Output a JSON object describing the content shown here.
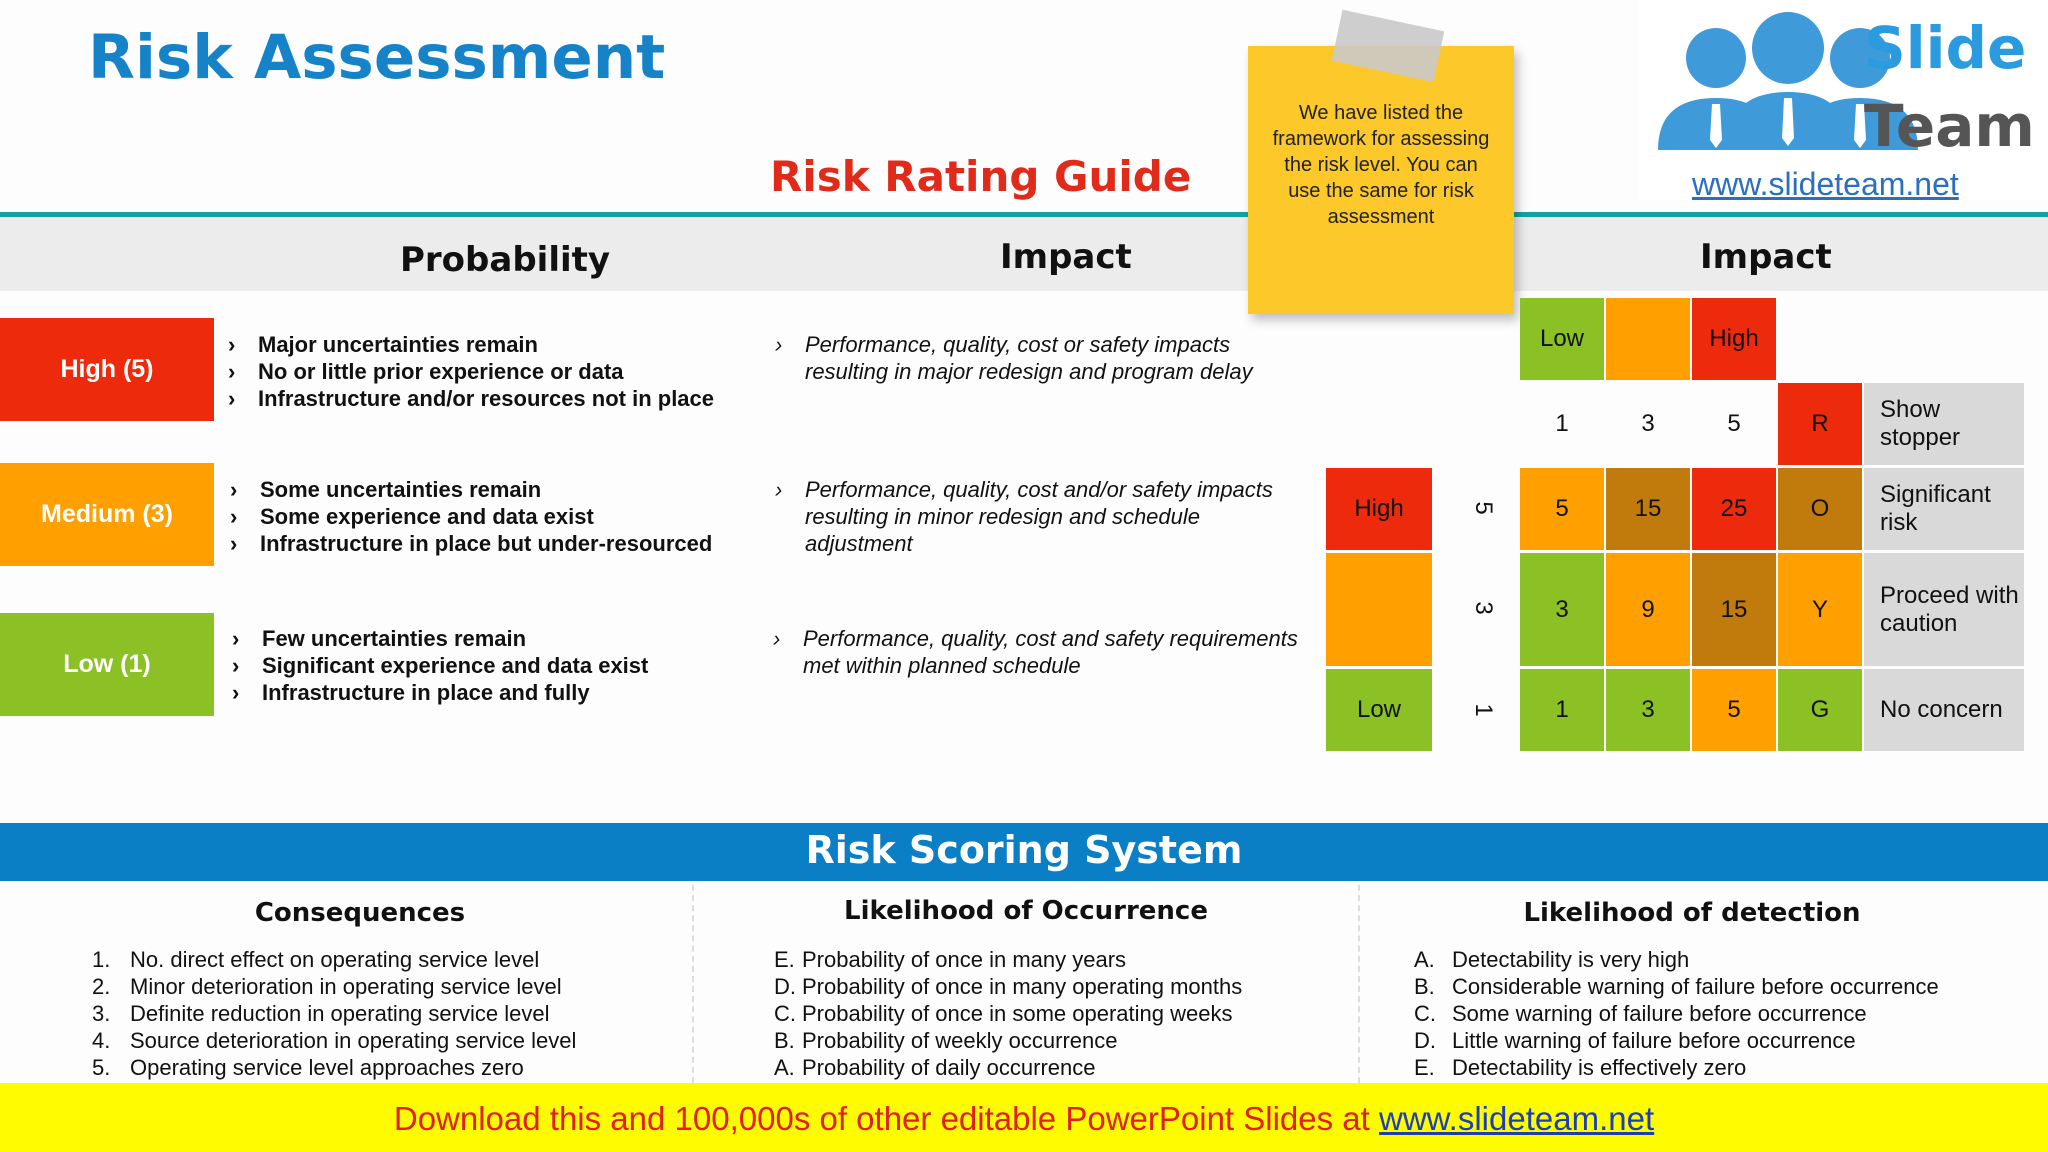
{
  "title": "Risk Assessment",
  "guide_title": "Risk Rating Guide",
  "headers": {
    "probability": "Probability",
    "impact": "Impact",
    "matrix_impact": "Impact"
  },
  "ratings": [
    {
      "label": "High (5)",
      "color": "#ee2a0c",
      "probability": [
        "Major uncertainties remain",
        "No or little prior experience or data",
        "Infrastructure and/or resources not in place"
      ],
      "impact": "Performance, quality, cost or safety impacts resulting in major redesign and program delay"
    },
    {
      "label": "Medium (3)",
      "color": "#ffa000",
      "probability": [
        "Some uncertainties remain",
        "Some experience and data exist",
        "Infrastructure in place but under-resourced"
      ],
      "impact": "Performance, quality, cost and/or safety impacts resulting in minor redesign and schedule adjustment"
    },
    {
      "label": "Low (1)",
      "color": "#8bc125",
      "probability": [
        "Few uncertainties remain",
        "Significant experience and data exist",
        "Infrastructure in place and fully"
      ],
      "impact": "Performance, quality, cost and safety requirements met within planned schedule"
    }
  ],
  "note": "We have listed the framework for assessing the risk level. You can use the same for risk assessment",
  "matrix": {
    "impact_scale": [
      "Low",
      "",
      "High"
    ],
    "impact_numbers": [
      "1",
      "3",
      "5"
    ],
    "probability_labels": [
      "High",
      "",
      "Low"
    ],
    "probability_numbers": [
      "5",
      "3",
      "1"
    ],
    "header_code": "R",
    "header_label": "Show stopper",
    "rows": [
      {
        "values": [
          "5",
          "15",
          "25"
        ],
        "code": "O",
        "label": "Significant risk"
      },
      {
        "values": [
          "3",
          "9",
          "15"
        ],
        "code": "Y",
        "label": "Proceed with caution"
      },
      {
        "values": [
          "1",
          "3",
          "5"
        ],
        "code": "G",
        "label": "No concern"
      }
    ],
    "colors": {
      "red": "#ee2a0c",
      "orange": "#ffa000",
      "brown": "#c17a0c",
      "green": "#8bc125",
      "gray": "#d9d9d9"
    }
  },
  "logo": {
    "name_top": "Slide",
    "name_bottom": "Team",
    "url": "www.slideteam.net"
  },
  "scoring": {
    "title": "Risk Scoring System",
    "consequences": {
      "title": "Consequences",
      "items": [
        {
          "m": "1.",
          "t": "No. direct effect on operating service level"
        },
        {
          "m": "2.",
          "t": "Minor deterioration in operating service level"
        },
        {
          "m": "3.",
          "t": "Definite reduction in operating service level"
        },
        {
          "m": "4.",
          "t": "Source deterioration in operating service level"
        },
        {
          "m": "5.",
          "t": "Operating service level approaches zero"
        }
      ]
    },
    "likelihood": {
      "title": "Likelihood of Occurrence",
      "items": [
        {
          "m": "E.",
          "t": "Probability of once in many years"
        },
        {
          "m": "D.",
          "t": "Probability of once in many operating months"
        },
        {
          "m": "C.",
          "t": "Probability of once in some operating weeks"
        },
        {
          "m": "B.",
          "t": "Probability of weekly occurrence"
        },
        {
          "m": "A.",
          "t": "Probability of daily occurrence"
        }
      ]
    },
    "detection": {
      "title": "Likelihood of detection",
      "items": [
        {
          "m": "A.",
          "t": "Detectability is very high"
        },
        {
          "m": "B.",
          "t": "Considerable warning of failure before occurrence"
        },
        {
          "m": "C.",
          "t": "Some warning of failure before occurrence"
        },
        {
          "m": "D.",
          "t": "Little warning of failure before occurrence"
        },
        {
          "m": "E.",
          "t": "Detectability is effectively zero"
        }
      ]
    }
  },
  "footer": {
    "text": "Download this and 100,000s of other editable PowerPoint Slides at ",
    "link": "www.slideteam.net"
  }
}
